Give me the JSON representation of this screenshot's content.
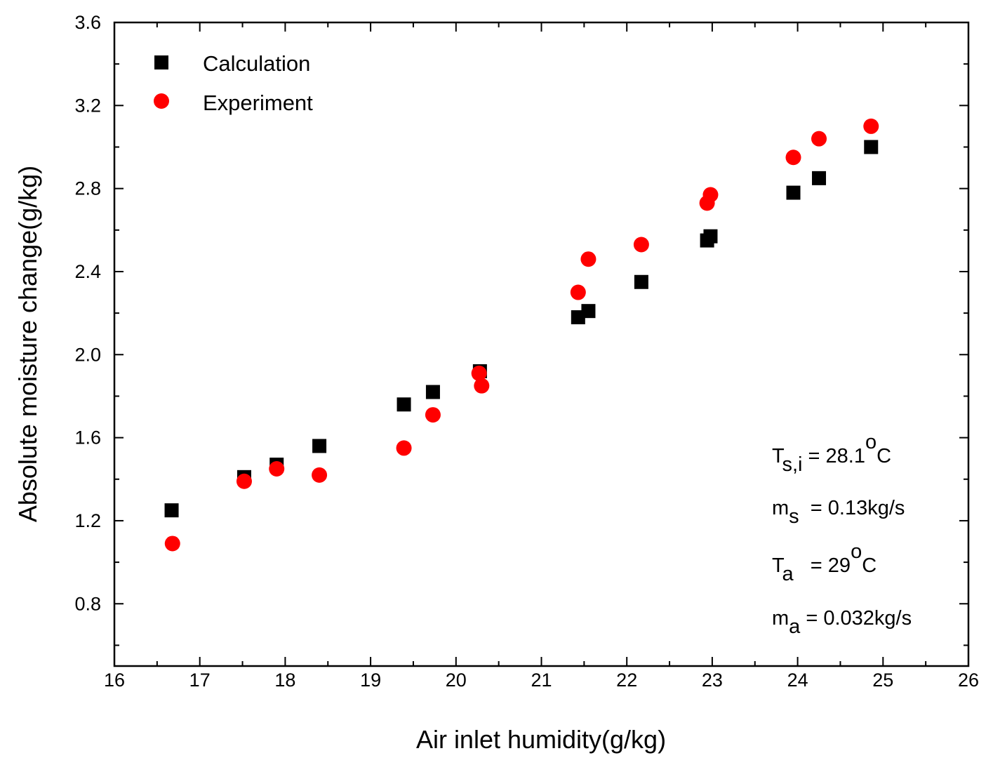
{
  "chart_data": {
    "type": "scatter",
    "title": "",
    "xlabel": "Air inlet humidity(g/kg)",
    "ylabel": "Absolute moisture change(g/kg)",
    "xlim": [
      16,
      26
    ],
    "ylim": [
      0.5,
      3.6
    ],
    "xticks": [
      16,
      17,
      18,
      19,
      20,
      21,
      22,
      23,
      24,
      25,
      26
    ],
    "xtick_labels": [
      "16",
      "17",
      "18",
      "19",
      "20",
      "21",
      "22",
      "23",
      "24",
      "25",
      "26"
    ],
    "yticks": [
      0.8,
      1.2,
      1.6,
      2.0,
      2.4,
      2.8,
      3.2,
      3.6
    ],
    "ytick_labels": [
      "0.8",
      "1.2",
      "1.6",
      "2.0",
      "2.4",
      "2.8",
      "3.2",
      "3.6"
    ],
    "grid": false,
    "legend_position": "top-left",
    "series": [
      {
        "name": "Calculation",
        "marker": "square",
        "color": "#000000",
        "x": [
          16.67,
          17.52,
          17.9,
          18.4,
          19.39,
          19.73,
          20.28,
          21.43,
          21.55,
          22.17,
          22.94,
          22.98,
          23.95,
          24.25,
          24.86
        ],
        "y": [
          1.25,
          1.41,
          1.47,
          1.56,
          1.76,
          1.82,
          1.92,
          2.18,
          2.21,
          2.35,
          2.55,
          2.57,
          2.78,
          2.85,
          3.0
        ]
      },
      {
        "name": "Experiment",
        "marker": "circle",
        "color": "#ff0000",
        "x": [
          16.68,
          17.52,
          17.9,
          18.4,
          19.39,
          19.73,
          20.27,
          20.3,
          21.43,
          21.55,
          22.17,
          22.94,
          22.98,
          23.95,
          24.25,
          24.86
        ],
        "y": [
          1.09,
          1.39,
          1.45,
          1.42,
          1.55,
          1.71,
          1.91,
          1.85,
          2.3,
          2.46,
          2.53,
          2.73,
          2.77,
          2.95,
          3.04,
          3.1
        ]
      }
    ],
    "annotations": [
      {
        "main": "T",
        "sub": "s,i",
        "sup": "o",
        "before_sup": " = 28.1",
        "after_sup": "C"
      },
      {
        "main": "m",
        "sub": "s",
        "rest": "  = 0.13kg/s"
      },
      {
        "main": "T",
        "sub": "a",
        "before_sup": "   = 29",
        "sup": "o",
        "after_sup": "C"
      },
      {
        "main": "m",
        "sub": "a",
        "rest": " = 0.032kg/s"
      }
    ]
  }
}
